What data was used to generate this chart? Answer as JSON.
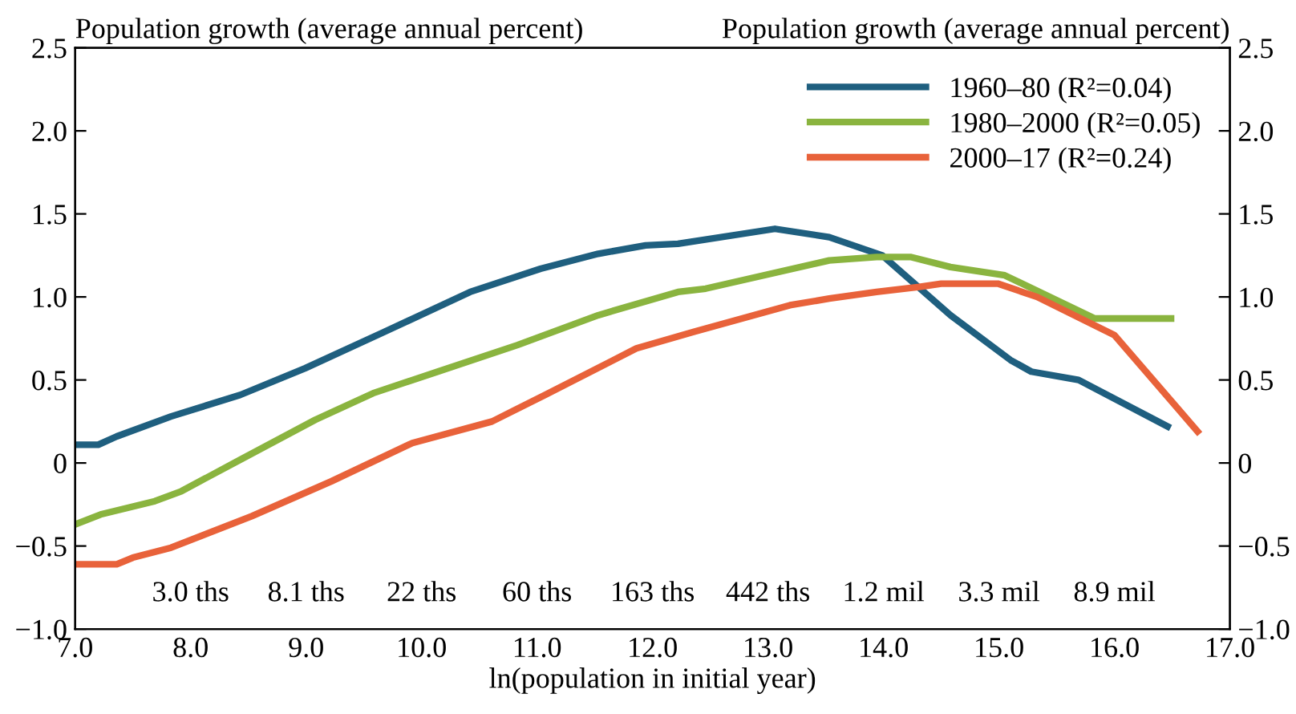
{
  "chart_data": {
    "type": "line",
    "xlabel": "ln(population in initial year)",
    "ylabel": "Population growth (average annual percent)",
    "y2label": "Population growth (average annual percent)",
    "series": [
      {
        "name": "1960–80 (R²=0.04)",
        "color": "#1f5f7f",
        "x": [
          7.0,
          7.2,
          7.36,
          7.83,
          8.43,
          8.99,
          9.68,
          10.42,
          11.03,
          11.53,
          11.94,
          12.22,
          13.06,
          13.53,
          13.99,
          14.58,
          15.1,
          15.28,
          15.69,
          16.46
        ],
        "values": [
          0.11,
          0.11,
          0.16,
          0.28,
          0.41,
          0.57,
          0.79,
          1.03,
          1.17,
          1.26,
          1.31,
          1.32,
          1.41,
          1.36,
          1.25,
          0.89,
          0.62,
          0.55,
          0.5,
          0.22
        ]
      },
      {
        "name": "1980–2000 (R²=0.05)",
        "color": "#8ab43f",
        "x": [
          7.0,
          7.22,
          7.69,
          7.92,
          8.43,
          9.08,
          9.58,
          10.14,
          10.83,
          11.53,
          12.22,
          12.46,
          13.53,
          13.94,
          14.24,
          14.58,
          15.05,
          15.83,
          16.49
        ],
        "values": [
          -0.37,
          -0.31,
          -0.23,
          -0.17,
          0.02,
          0.26,
          0.42,
          0.55,
          0.71,
          0.89,
          1.03,
          1.05,
          1.22,
          1.24,
          1.24,
          1.18,
          1.13,
          0.87,
          0.87
        ]
      },
      {
        "name": "2000–17 (R²=0.24)",
        "color": "#e8623a",
        "x": [
          7.0,
          7.36,
          7.5,
          7.83,
          8.53,
          9.22,
          9.92,
          10.61,
          11.07,
          11.86,
          12.36,
          13.19,
          13.53,
          13.94,
          14.31,
          14.5,
          14.99,
          15.33,
          16.0,
          16.72
        ],
        "values": [
          -0.61,
          -0.61,
          -0.57,
          -0.51,
          -0.32,
          -0.11,
          0.12,
          0.25,
          0.41,
          0.69,
          0.79,
          0.95,
          0.99,
          1.03,
          1.06,
          1.08,
          1.08,
          1.0,
          0.77,
          0.19
        ]
      }
    ],
    "xlim": [
      7.0,
      17.0
    ],
    "xticks": [
      {
        "value": 7,
        "label": "7.0"
      },
      {
        "value": 8,
        "label": "8.0"
      },
      {
        "value": 9,
        "label": "9.0"
      },
      {
        "value": 10,
        "label": "10.0"
      },
      {
        "value": 11,
        "label": "11.0"
      },
      {
        "value": 12,
        "label": "12.0"
      },
      {
        "value": 13,
        "label": "13.0"
      },
      {
        "value": 14,
        "label": "14.0"
      },
      {
        "value": 15,
        "label": "15.0"
      },
      {
        "value": 16,
        "label": "16.0"
      },
      {
        "value": 17,
        "label": "17.0"
      }
    ],
    "ylim": [
      -1.0,
      2.5
    ],
    "yticks": [
      {
        "value": -1.0,
        "label": "−1.0"
      },
      {
        "value": -0.5,
        "label": "−0.5"
      },
      0,
      0.5,
      {
        "value": 1,
        "label": "1.0"
      },
      1.5,
      {
        "value": 2,
        "label": "2.0"
      },
      2.5
    ],
    "y2lim": [
      -1.0,
      2.5
    ],
    "y2ticks": [
      {
        "value": -1.0,
        "label": "−1.0"
      },
      {
        "value": -0.5,
        "label": "−0.5"
      },
      0,
      0.5,
      {
        "value": 1,
        "label": "1.0"
      },
      1.5,
      {
        "value": 2,
        "label": "2.0"
      },
      2.5
    ],
    "annotations": [
      "3.0 ths",
      "8.1 ths",
      "22 ths",
      "60 ths",
      "163 ths",
      "442 ths",
      "1.2 mil",
      "3.3 mil",
      "8.9 mil"
    ],
    "legend": "top right",
    "grid": false,
    "marker": "none",
    "line_style": "solid"
  }
}
